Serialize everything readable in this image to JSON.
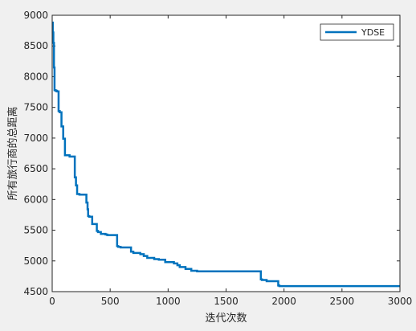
{
  "chart_data": {
    "type": "line",
    "title": "",
    "xlabel": "迭代次数",
    "ylabel": "所有旅行商的总距离",
    "xlim": [
      0,
      3000
    ],
    "ylim": [
      4500,
      9000
    ],
    "xticks": [
      0,
      500,
      1000,
      1500,
      2000,
      2500,
      3000
    ],
    "yticks": [
      4500,
      5000,
      5500,
      6000,
      6500,
      7000,
      7500,
      8000,
      8500,
      9000
    ],
    "grid": false,
    "legend_position": "top-right",
    "series": [
      {
        "name": "YDSE",
        "color": "#0072bd",
        "step": true,
        "x": [
          0,
          5,
          10,
          15,
          20,
          30,
          40,
          55,
          65,
          80,
          95,
          110,
          150,
          195,
          205,
          215,
          235,
          295,
          305,
          310,
          320,
          345,
          385,
          395,
          420,
          460,
          475,
          560,
          570,
          590,
          680,
          700,
          760,
          790,
          820,
          880,
          920,
          975,
          1050,
          1080,
          1100,
          1150,
          1200,
          1250,
          1800,
          1810,
          1850,
          1950,
          1960,
          3000
        ],
        "y": [
          8880,
          8720,
          8550,
          8150,
          7780,
          7770,
          7760,
          7440,
          7420,
          7190,
          6990,
          6720,
          6700,
          6360,
          6230,
          6090,
          6080,
          5950,
          5840,
          5730,
          5720,
          5600,
          5490,
          5470,
          5440,
          5430,
          5420,
          5240,
          5230,
          5220,
          5150,
          5130,
          5110,
          5080,
          5050,
          5030,
          5020,
          4980,
          4960,
          4930,
          4900,
          4870,
          4840,
          4830,
          4700,
          4690,
          4670,
          4600,
          4590,
          4590
        ]
      }
    ]
  }
}
